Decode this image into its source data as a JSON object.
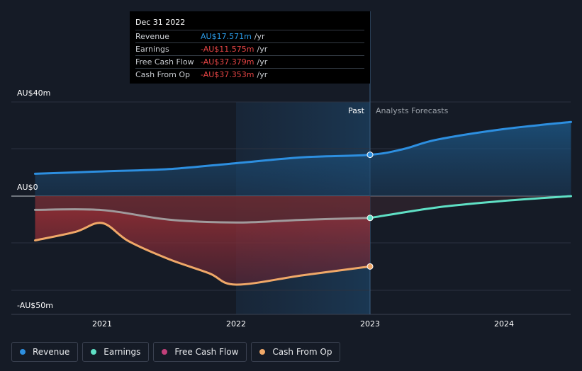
{
  "tooltip": {
    "date": "Dec 31 2022",
    "rows": [
      {
        "label": "Revenue",
        "value": "AU$17.571m",
        "unit": "/yr",
        "color": "#2b9be8"
      },
      {
        "label": "Earnings",
        "value": "-AU$11.575m",
        "unit": "/yr",
        "color": "#e84545"
      },
      {
        "label": "Free Cash Flow",
        "value": "-AU$37.379m",
        "unit": "/yr",
        "color": "#e84545"
      },
      {
        "label": "Cash From Op",
        "value": "-AU$37.353m",
        "unit": "/yr",
        "color": "#e84545"
      }
    ]
  },
  "regions": {
    "past": "Past",
    "forecast": "Analysts Forecasts"
  },
  "legend": [
    {
      "label": "Revenue",
      "color": "#2d8fe0"
    },
    {
      "label": "Earnings",
      "color": "#5fe0c5"
    },
    {
      "label": "Free Cash Flow",
      "color": "#c2407a"
    },
    {
      "label": "Cash From Op",
      "color": "#f0a868"
    }
  ],
  "chart_data": {
    "type": "line",
    "y_tick_labels": [
      "AU$40m",
      "AU$0",
      "-AU$50m"
    ],
    "x_tick_labels": [
      "2021",
      "2022",
      "2023",
      "2024"
    ],
    "ylim": [
      -50,
      40
    ],
    "xlim": [
      2020.5,
      2024.5
    ],
    "past_end": 2023.0,
    "highlight_start": 2022.0,
    "series": [
      {
        "name": "Revenue",
        "color": "#2d8fe0",
        "x": [
          2020.5,
          2021.0,
          2021.5,
          2022.0,
          2022.5,
          2023.0,
          2023.25,
          2023.5,
          2024.0,
          2024.5
        ],
        "y": [
          9.5,
          10.5,
          11.5,
          14,
          16.5,
          17.571,
          20,
          24,
          28.5,
          31.5
        ]
      },
      {
        "name": "Earnings",
        "color": "#5fe0c5",
        "x": [
          2020.5,
          2021.0,
          2021.5,
          2022.0,
          2022.5,
          2023.0,
          2023.5,
          2024.0,
          2024.5
        ],
        "y": [
          -7.3,
          -7.4,
          -12.5,
          -14,
          -12.6,
          -11.575,
          -6,
          -2.5,
          0
        ]
      },
      {
        "name": "Free Cash Flow",
        "color": "#c2407a",
        "x": [
          2020.5,
          2021.0,
          2021.5,
          2022.0,
          2022.5,
          2023.0
        ],
        "y": [
          -23.5,
          -14.5,
          -32,
          -47,
          -42,
          -37.379
        ]
      },
      {
        "name": "Cash From Op",
        "color": "#f0a868",
        "x": [
          2020.5,
          2020.8,
          2021.0,
          2021.2,
          2021.5,
          2021.8,
          2022.0,
          2022.5,
          2023.0
        ],
        "y": [
          -23.5,
          -19,
          -14.3,
          -24,
          -33.5,
          -41,
          -47,
          -42,
          -37.353
        ]
      }
    ]
  }
}
